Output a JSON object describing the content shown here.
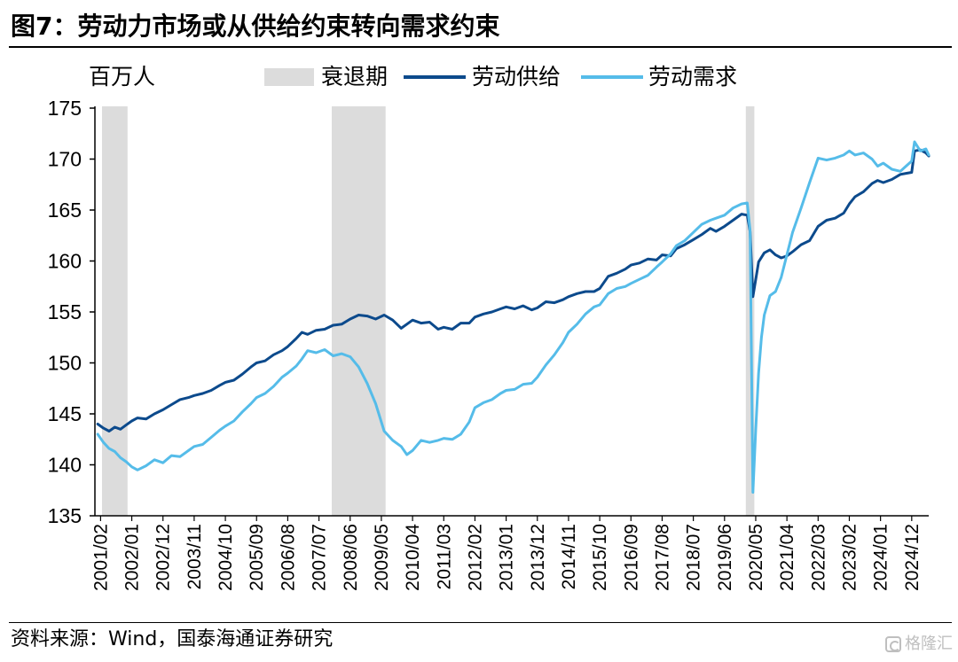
{
  "chart_data": {
    "type": "line",
    "title": "图7：劳动力市场或从供给约束转向需求约束",
    "xlabel": "",
    "ylabel": "百万人",
    "xlim": [
      "2000/12",
      "2025/06"
    ],
    "ylim": [
      135,
      175
    ],
    "yticks": [
      135,
      140,
      145,
      150,
      155,
      160,
      165,
      170,
      175
    ],
    "xticks": [
      "2001/02",
      "2002/01",
      "2002/12",
      "2003/11",
      "2004/10",
      "2005/09",
      "2006/08",
      "2007/07",
      "2008/06",
      "2009/05",
      "2010/04",
      "2011/03",
      "2012/02",
      "2013/01",
      "2013/12",
      "2014/11",
      "2015/10",
      "2016/09",
      "2017/08",
      "2018/07",
      "2019/06",
      "2020/05",
      "2021/04",
      "2022/03",
      "2023/02",
      "2024/01",
      "2024/12"
    ],
    "grid": false,
    "legend_position": "top",
    "recession_label": "衰退期",
    "recessions": [
      {
        "start": "2001/03",
        "end": "2001/11"
      },
      {
        "start": "2007/12",
        "end": "2009/06"
      },
      {
        "start": "2020/02",
        "end": "2020/04"
      }
    ],
    "series": [
      {
        "name": "劳动供给",
        "color": "#0c4a8c",
        "points": [
          [
            "2001/01",
            144.0
          ],
          [
            "2001/03",
            143.6
          ],
          [
            "2001/05",
            143.3
          ],
          [
            "2001/07",
            143.7
          ],
          [
            "2001/09",
            143.5
          ],
          [
            "2001/11",
            143.9
          ],
          [
            "2002/01",
            144.3
          ],
          [
            "2002/03",
            144.6
          ],
          [
            "2002/06",
            144.5
          ],
          [
            "2002/09",
            145.0
          ],
          [
            "2002/12",
            145.4
          ],
          [
            "2003/03",
            145.9
          ],
          [
            "2003/06",
            146.4
          ],
          [
            "2003/09",
            146.6
          ],
          [
            "2003/11",
            146.8
          ],
          [
            "2004/02",
            147.0
          ],
          [
            "2004/05",
            147.3
          ],
          [
            "2004/08",
            147.8
          ],
          [
            "2004/10",
            148.1
          ],
          [
            "2005/01",
            148.3
          ],
          [
            "2005/04",
            148.9
          ],
          [
            "2005/07",
            149.6
          ],
          [
            "2005/09",
            150.0
          ],
          [
            "2005/12",
            150.2
          ],
          [
            "2006/03",
            150.8
          ],
          [
            "2006/06",
            151.2
          ],
          [
            "2006/08",
            151.6
          ],
          [
            "2006/11",
            152.4
          ],
          [
            "2007/01",
            153.0
          ],
          [
            "2007/03",
            152.8
          ],
          [
            "2007/06",
            153.2
          ],
          [
            "2007/09",
            153.3
          ],
          [
            "2007/12",
            153.7
          ],
          [
            "2008/03",
            153.8
          ],
          [
            "2008/06",
            154.3
          ],
          [
            "2008/09",
            154.7
          ],
          [
            "2008/12",
            154.6
          ],
          [
            "2009/03",
            154.3
          ],
          [
            "2009/06",
            154.7
          ],
          [
            "2009/09",
            154.2
          ],
          [
            "2009/12",
            153.4
          ],
          [
            "2010/02",
            153.8
          ],
          [
            "2010/04",
            154.2
          ],
          [
            "2010/07",
            153.9
          ],
          [
            "2010/10",
            154.0
          ],
          [
            "2011/01",
            153.3
          ],
          [
            "2011/03",
            153.5
          ],
          [
            "2011/06",
            153.3
          ],
          [
            "2011/09",
            153.9
          ],
          [
            "2011/12",
            153.9
          ],
          [
            "2012/02",
            154.5
          ],
          [
            "2012/05",
            154.8
          ],
          [
            "2012/08",
            155.0
          ],
          [
            "2012/11",
            155.3
          ],
          [
            "2013/01",
            155.5
          ],
          [
            "2013/04",
            155.3
          ],
          [
            "2013/07",
            155.6
          ],
          [
            "2013/10",
            155.2
          ],
          [
            "2013/12",
            155.4
          ],
          [
            "2014/03",
            156.0
          ],
          [
            "2014/06",
            155.9
          ],
          [
            "2014/09",
            156.2
          ],
          [
            "2014/11",
            156.5
          ],
          [
            "2015/02",
            156.8
          ],
          [
            "2015/05",
            157.0
          ],
          [
            "2015/08",
            157.0
          ],
          [
            "2015/10",
            157.3
          ],
          [
            "2016/01",
            158.5
          ],
          [
            "2016/04",
            158.8
          ],
          [
            "2016/07",
            159.2
          ],
          [
            "2016/09",
            159.6
          ],
          [
            "2016/12",
            159.8
          ],
          [
            "2017/03",
            160.2
          ],
          [
            "2017/06",
            160.1
          ],
          [
            "2017/08",
            160.6
          ],
          [
            "2017/11",
            160.5
          ],
          [
            "2018/01",
            161.2
          ],
          [
            "2018/04",
            161.6
          ],
          [
            "2018/07",
            162.1
          ],
          [
            "2018/10",
            162.6
          ],
          [
            "2019/01",
            163.2
          ],
          [
            "2019/03",
            162.9
          ],
          [
            "2019/06",
            163.4
          ],
          [
            "2019/09",
            164.0
          ],
          [
            "2019/12",
            164.6
          ],
          [
            "2020/02",
            164.5
          ],
          [
            "2020/03",
            162.9
          ],
          [
            "2020/04",
            156.5
          ],
          [
            "2020/05",
            158.2
          ],
          [
            "2020/06",
            159.9
          ],
          [
            "2020/08",
            160.8
          ],
          [
            "2020/10",
            161.1
          ],
          [
            "2020/12",
            160.6
          ],
          [
            "2021/02",
            160.3
          ],
          [
            "2021/04",
            160.5
          ],
          [
            "2021/06",
            160.9
          ],
          [
            "2021/09",
            161.6
          ],
          [
            "2021/12",
            162.0
          ],
          [
            "2022/03",
            163.4
          ],
          [
            "2022/06",
            164.0
          ],
          [
            "2022/09",
            164.2
          ],
          [
            "2022/12",
            164.7
          ],
          [
            "2023/02",
            165.6
          ],
          [
            "2023/04",
            166.3
          ],
          [
            "2023/07",
            166.8
          ],
          [
            "2023/10",
            167.6
          ],
          [
            "2023/12",
            167.9
          ],
          [
            "2024/02",
            167.7
          ],
          [
            "2024/05",
            168.0
          ],
          [
            "2024/08",
            168.5
          ],
          [
            "2024/10",
            168.6
          ],
          [
            "2024/12",
            168.7
          ],
          [
            "2025/01",
            170.8
          ],
          [
            "2025/03",
            170.9
          ],
          [
            "2025/05",
            170.6
          ],
          [
            "2025/06",
            170.3
          ]
        ]
      },
      {
        "name": "劳动需求",
        "color": "#55bce9",
        "points": [
          [
            "2001/01",
            143.0
          ],
          [
            "2001/03",
            142.2
          ],
          [
            "2001/05",
            141.6
          ],
          [
            "2001/07",
            141.3
          ],
          [
            "2001/09",
            140.7
          ],
          [
            "2001/11",
            140.3
          ],
          [
            "2002/01",
            139.8
          ],
          [
            "2002/03",
            139.5
          ],
          [
            "2002/06",
            139.9
          ],
          [
            "2002/09",
            140.5
          ],
          [
            "2002/12",
            140.2
          ],
          [
            "2003/03",
            140.9
          ],
          [
            "2003/06",
            140.8
          ],
          [
            "2003/09",
            141.4
          ],
          [
            "2003/11",
            141.8
          ],
          [
            "2004/02",
            142.0
          ],
          [
            "2004/05",
            142.7
          ],
          [
            "2004/08",
            143.4
          ],
          [
            "2004/10",
            143.8
          ],
          [
            "2005/01",
            144.3
          ],
          [
            "2005/04",
            145.2
          ],
          [
            "2005/07",
            146.0
          ],
          [
            "2005/09",
            146.6
          ],
          [
            "2005/12",
            147.0
          ],
          [
            "2006/03",
            147.7
          ],
          [
            "2006/06",
            148.6
          ],
          [
            "2006/08",
            149.0
          ],
          [
            "2006/11",
            149.7
          ],
          [
            "2007/01",
            150.4
          ],
          [
            "2007/03",
            151.2
          ],
          [
            "2007/06",
            151.0
          ],
          [
            "2007/09",
            151.3
          ],
          [
            "2007/12",
            150.7
          ],
          [
            "2008/03",
            150.9
          ],
          [
            "2008/06",
            150.6
          ],
          [
            "2008/09",
            149.6
          ],
          [
            "2008/12",
            148.0
          ],
          [
            "2009/03",
            146.0
          ],
          [
            "2009/06",
            143.3
          ],
          [
            "2009/09",
            142.4
          ],
          [
            "2009/12",
            141.8
          ],
          [
            "2010/02",
            141.0
          ],
          [
            "2010/04",
            141.4
          ],
          [
            "2010/07",
            142.4
          ],
          [
            "2010/10",
            142.2
          ],
          [
            "2011/01",
            142.4
          ],
          [
            "2011/03",
            142.6
          ],
          [
            "2011/06",
            142.5
          ],
          [
            "2011/09",
            143.0
          ],
          [
            "2011/12",
            144.2
          ],
          [
            "2012/02",
            145.6
          ],
          [
            "2012/05",
            146.1
          ],
          [
            "2012/08",
            146.4
          ],
          [
            "2012/11",
            147.0
          ],
          [
            "2013/01",
            147.3
          ],
          [
            "2013/04",
            147.4
          ],
          [
            "2013/07",
            147.9
          ],
          [
            "2013/10",
            148.0
          ],
          [
            "2013/12",
            148.6
          ],
          [
            "2014/03",
            149.8
          ],
          [
            "2014/06",
            150.8
          ],
          [
            "2014/09",
            152.0
          ],
          [
            "2014/11",
            153.0
          ],
          [
            "2015/02",
            153.8
          ],
          [
            "2015/05",
            154.8
          ],
          [
            "2015/08",
            155.5
          ],
          [
            "2015/10",
            155.7
          ],
          [
            "2016/01",
            156.8
          ],
          [
            "2016/04",
            157.3
          ],
          [
            "2016/07",
            157.5
          ],
          [
            "2016/09",
            157.8
          ],
          [
            "2016/12",
            158.2
          ],
          [
            "2017/03",
            158.6
          ],
          [
            "2017/06",
            159.4
          ],
          [
            "2017/08",
            159.9
          ],
          [
            "2017/11",
            160.7
          ],
          [
            "2018/01",
            161.5
          ],
          [
            "2018/04",
            162.0
          ],
          [
            "2018/07",
            162.8
          ],
          [
            "2018/10",
            163.6
          ],
          [
            "2019/01",
            164.0
          ],
          [
            "2019/03",
            164.2
          ],
          [
            "2019/06",
            164.5
          ],
          [
            "2019/09",
            165.2
          ],
          [
            "2019/12",
            165.6
          ],
          [
            "2020/02",
            165.7
          ],
          [
            "2020/03",
            163.0
          ],
          [
            "2020/04",
            137.3
          ],
          [
            "2020/05",
            143.5
          ],
          [
            "2020/06",
            149.0
          ],
          [
            "2020/07",
            152.5
          ],
          [
            "2020/08",
            154.7
          ],
          [
            "2020/10",
            156.6
          ],
          [
            "2020/12",
            157.0
          ],
          [
            "2021/02",
            158.4
          ],
          [
            "2021/04",
            160.6
          ],
          [
            "2021/06",
            162.8
          ],
          [
            "2021/09",
            165.2
          ],
          [
            "2021/12",
            167.7
          ],
          [
            "2022/03",
            170.1
          ],
          [
            "2022/06",
            169.9
          ],
          [
            "2022/09",
            170.1
          ],
          [
            "2022/12",
            170.4
          ],
          [
            "2023/02",
            170.8
          ],
          [
            "2023/04",
            170.4
          ],
          [
            "2023/07",
            170.6
          ],
          [
            "2023/10",
            170.0
          ],
          [
            "2023/12",
            169.3
          ],
          [
            "2024/02",
            169.6
          ],
          [
            "2024/05",
            169.0
          ],
          [
            "2024/08",
            168.8
          ],
          [
            "2024/10",
            169.3
          ],
          [
            "2024/12",
            169.8
          ],
          [
            "2025/01",
            171.7
          ],
          [
            "2025/03",
            170.8
          ],
          [
            "2025/05",
            171.0
          ],
          [
            "2025/06",
            170.4
          ]
        ]
      }
    ]
  },
  "colors": {
    "recession": "#dcdcdc",
    "axis": "#000000"
  },
  "source": "资料来源：Wind，国泰海通证券研究",
  "watermark": {
    "text": "格隆汇",
    "icon": "gelonghui-logo-icon"
  }
}
